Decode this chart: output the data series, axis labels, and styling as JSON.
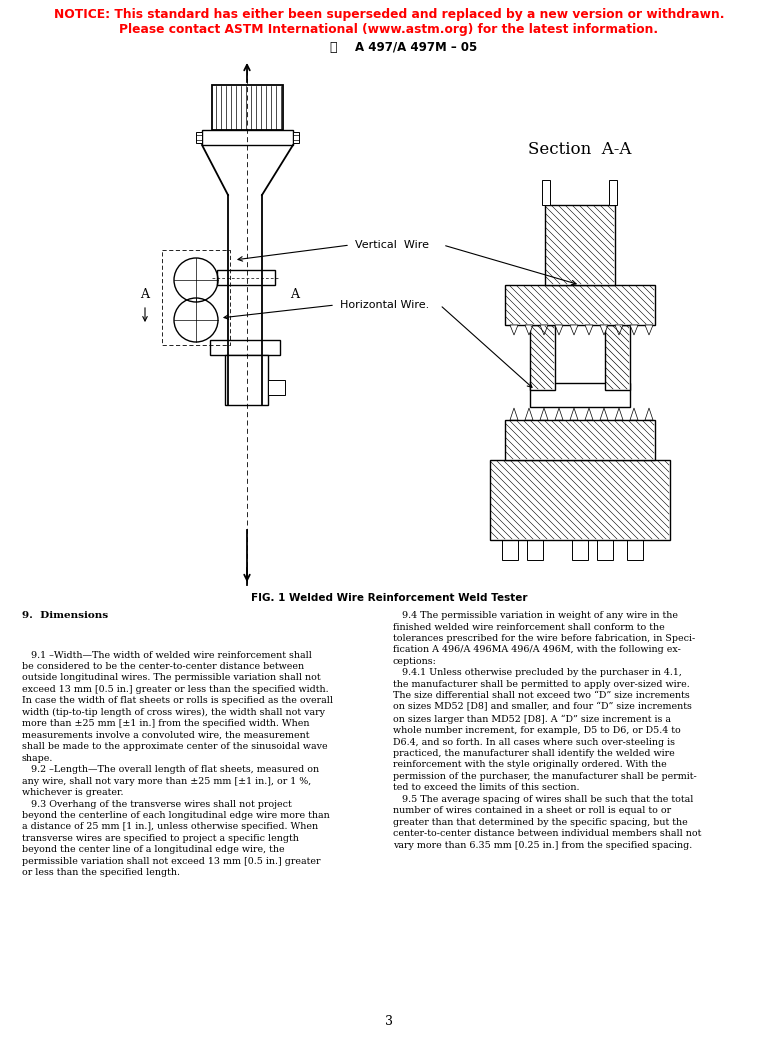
{
  "notice_line1": "NOTICE: This standard has either been superseded and replaced by a new version or withdrawn.",
  "notice_line2": "Please contact ASTM International (www.astm.org) for the latest information.",
  "doc_id": "A 497/A 497M – 05",
  "fig_caption": "FIG. 1 Welded Wire Reinforcement Weld Tester",
  "section_section": "Section  A-A",
  "label_vertical": "Vertical  Wire",
  "label_horizontal": "Horizontal Wire.",
  "page_number": "3",
  "notice_color": "#FF0000",
  "text_color": "#000000",
  "background_color": "#FFFFFF",
  "left_col_text": "9.  Dimensions\n\n   9.1 Width—The width of welded wire reinforcement shall\nbe considered to be the center-to-center distance between\noutside longitudinal wires. The permissible variation shall not\nexceed 13 mm [0.5 in.] greater or less than the specified width.\nIn case the width of flat sheets or rolls is specified as the overall\nwidth (tip-to-tip length of cross wires), the width shall not vary\nmore than ±25 mm [±1 in.] from the specified width. When\nmeasurements involve a convoluted wire, the measurement\nshall be made to the approximate center of the sinusoidal wave\nshape.\n\n   9.2 Length—The overall length of flat sheets, measured on\nany wire, shall not vary more than ±25 mm [±1 in.], or 1 %,\nwhichever is greater.\n\n   9.3 Overhang of the transverse wires shall not project\nbeyond the centerline of each longitudinal edge wire more than\na distance of 25 mm [1 in.], unless otherwise specified. When\ntransverse wires are specified to project a specific length\nbeyond the center line of a longitudinal edge wire, the\npermissible variation shall not exceed 13 mm [0.5 in.] greater\nor less than the specified length.",
  "right_col_text": "   9.4 The permissible variation in weight of any wire in the\nfinished welded wire reinforcement shall conform to the\ntolerances prescribed for the wire before fabrication, in Speci-\nfication A 496/A 496MA 496/A 496M, with the following ex-\nceptions:\n\n   9.4.1 Unless otherwise precluded by the purchaser in 4.1,\nthe manufacturer shall be permitted to apply over-sized wire.\nThe size differential shall not exceed two “D” size increments\non sizes MD52 [D8] and smaller, and four “D” size increments\non sizes larger than MD52 [D8]. A “D” size increment is a\nwhole number increment, for example, D5 to D6, or D5.4 to\nD6.4, and so forth. In all cases where such over-steeling is\npracticed, the manufacturer shall identify the welded wire\nreinforcement with the style originally ordered. With the\npermission of the purchaser, the manufacturer shall be permit-\nted to exceed the limits of this section.\n\n   9.5 The average spacing of wires shall be such that the total\nnumber of wires contained in a sheet or roll is equal to or\ngreater than that determined by the specific spacing, but the\ncenter-to-center distance between individual members shall not\nvary more than 6.35 mm [0.25 in.] from the specified spacing."
}
